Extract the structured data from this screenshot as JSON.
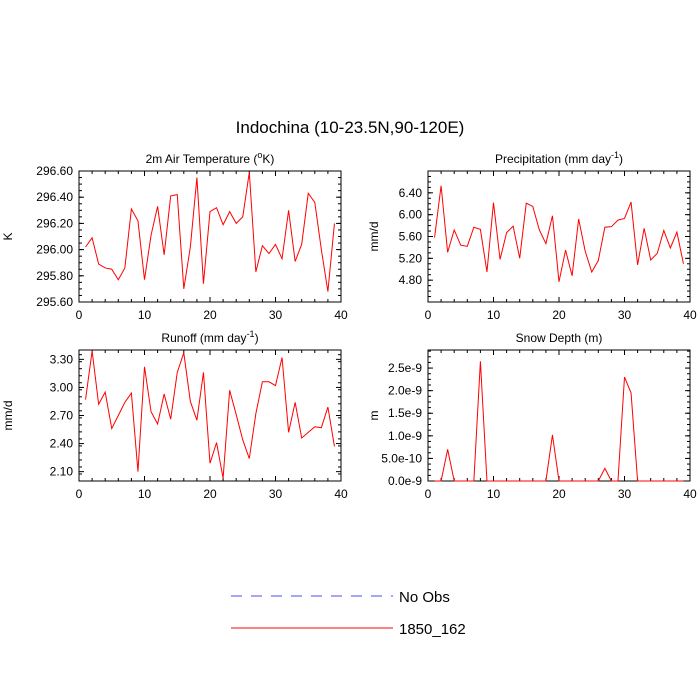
{
  "figure": {
    "title": "Indochina (10-23.5N,90-120E)",
    "legend": [
      {
        "label": "No Obs",
        "color": "#4a4aff",
        "style": "dashed"
      },
      {
        "label": "1850_162",
        "color": "#ff0000",
        "style": "solid"
      }
    ]
  },
  "chart_data": [
    {
      "type": "line",
      "title": "2m Air Temperature (",
      "title_sup": "o",
      "title_tail": "K)",
      "ylabel": "K",
      "xlim": [
        0,
        40
      ],
      "ylim": [
        295.6,
        296.6
      ],
      "xticks": [
        "0",
        "10",
        "20",
        "30",
        "40"
      ],
      "xtick_values": [
        0,
        10,
        20,
        30,
        40
      ],
      "yticks": [
        "295.60",
        "295.80",
        "296.00",
        "296.20",
        "296.40",
        "296.60"
      ],
      "ytick_values": [
        295.6,
        295.8,
        296.0,
        296.2,
        296.4,
        296.6
      ],
      "series": [
        {
          "name": "1850_162",
          "color": "#ff0000",
          "x": [
            1,
            2,
            3,
            4,
            5,
            6,
            7,
            8,
            9,
            10,
            11,
            12,
            13,
            14,
            15,
            16,
            17,
            18,
            19,
            20,
            21,
            22,
            23,
            24,
            25,
            26,
            27,
            28,
            29,
            30,
            31,
            32,
            33,
            34,
            35,
            36,
            37,
            38,
            39
          ],
          "y": [
            296.02,
            296.09,
            295.89,
            295.86,
            295.85,
            295.77,
            295.86,
            296.31,
            296.22,
            295.77,
            296.11,
            296.33,
            295.96,
            296.41,
            296.42,
            295.7,
            296.02,
            296.55,
            295.74,
            296.29,
            296.32,
            296.19,
            296.29,
            296.2,
            296.25,
            296.59,
            295.83,
            296.03,
            295.97,
            296.04,
            295.93,
            296.3,
            295.91,
            296.04,
            296.43,
            296.36,
            296.0,
            295.68,
            296.2
          ]
        }
      ]
    },
    {
      "type": "line",
      "title": "Precipitation (mm day",
      "title_sup": "-1",
      "title_tail": ")",
      "ylabel": "mm/d",
      "xlim": [
        0,
        40
      ],
      "ylim": [
        4.4,
        6.8
      ],
      "xticks": [
        "0",
        "10",
        "20",
        "30",
        "40"
      ],
      "xtick_values": [
        0,
        10,
        20,
        30,
        40
      ],
      "yticks": [
        "4.80",
        "5.20",
        "5.60",
        "6.00",
        "6.40"
      ],
      "ytick_values": [
        4.8,
        5.2,
        5.6,
        6.0,
        6.4
      ],
      "series": [
        {
          "name": "1850_162",
          "color": "#ff0000",
          "x": [
            1,
            2,
            3,
            4,
            5,
            6,
            7,
            8,
            9,
            10,
            11,
            12,
            13,
            14,
            15,
            16,
            17,
            18,
            19,
            20,
            21,
            22,
            23,
            24,
            25,
            26,
            27,
            28,
            29,
            30,
            31,
            32,
            33,
            34,
            35,
            36,
            37,
            38,
            39
          ],
          "y": [
            5.58,
            6.53,
            5.31,
            5.72,
            5.44,
            5.42,
            5.77,
            5.73,
            4.95,
            6.22,
            5.18,
            5.67,
            5.79,
            5.2,
            6.21,
            6.15,
            5.72,
            5.47,
            5.98,
            4.77,
            5.35,
            4.88,
            5.92,
            5.33,
            4.95,
            5.16,
            5.77,
            5.78,
            5.9,
            5.93,
            6.23,
            5.08,
            5.75,
            5.17,
            5.29,
            5.71,
            5.39,
            5.68,
            5.1
          ]
        }
      ]
    },
    {
      "type": "line",
      "title": "Runoff (mm day",
      "title_sup": "-1",
      "title_tail": ")",
      "ylabel": "mm/d",
      "xlim": [
        0,
        40
      ],
      "ylim": [
        2.0,
        3.4
      ],
      "xticks": [
        "0",
        "10",
        "20",
        "30",
        "40"
      ],
      "xtick_values": [
        0,
        10,
        20,
        30,
        40
      ],
      "yticks": [
        "2.10",
        "2.40",
        "2.70",
        "3.00",
        "3.30"
      ],
      "ytick_values": [
        2.1,
        2.4,
        2.7,
        3.0,
        3.3
      ],
      "series": [
        {
          "name": "1850_162",
          "color": "#ff0000",
          "x": [
            1,
            2,
            3,
            4,
            5,
            6,
            7,
            8,
            9,
            10,
            11,
            12,
            13,
            14,
            15,
            16,
            17,
            18,
            19,
            20,
            21,
            22,
            23,
            24,
            25,
            26,
            27,
            28,
            29,
            30,
            31,
            32,
            33,
            34,
            35,
            36,
            37,
            38,
            39
          ],
          "y": [
            2.87,
            3.39,
            2.82,
            2.95,
            2.56,
            2.7,
            2.84,
            2.94,
            2.1,
            3.22,
            2.74,
            2.61,
            2.93,
            2.66,
            3.16,
            3.37,
            2.85,
            2.65,
            3.16,
            2.19,
            2.41,
            2.03,
            2.97,
            2.71,
            2.44,
            2.24,
            2.72,
            3.06,
            3.06,
            3.02,
            3.32,
            2.52,
            2.84,
            2.46,
            2.52,
            2.58,
            2.57,
            2.79,
            2.37
          ]
        }
      ]
    },
    {
      "type": "line",
      "title": "Snow Depth (m)",
      "title_sup": "",
      "title_tail": "",
      "ylabel": "m",
      "xlim": [
        0,
        40
      ],
      "ylim": [
        0,
        2.9e-09
      ],
      "xticks": [
        "0",
        "10",
        "20",
        "30",
        "40"
      ],
      "xtick_values": [
        0,
        10,
        20,
        30,
        40
      ],
      "yticks": [
        "0.0e-9",
        "5.0e-10",
        "1.0e-9",
        "1.5e-9",
        "2.0e-9",
        "2.5e-9"
      ],
      "ytick_values": [
        0,
        5e-10,
        1e-09,
        1.5e-09,
        2e-09,
        2.5e-09
      ],
      "series": [
        {
          "name": "1850_162",
          "color": "#ff0000",
          "x": [
            1,
            2,
            3,
            4,
            5,
            6,
            7,
            8,
            9,
            10,
            11,
            12,
            13,
            14,
            15,
            16,
            17,
            18,
            19,
            20,
            21,
            22,
            23,
            24,
            25,
            26,
            27,
            28,
            29,
            30,
            31,
            32,
            33,
            34,
            35,
            36,
            37,
            38,
            39
          ],
          "y": [
            0,
            0,
            7e-10,
            0,
            0,
            0,
            0,
            2.65e-09,
            0,
            0,
            0,
            0,
            0,
            0,
            0,
            0,
            0,
            0,
            1.02e-09,
            0,
            0,
            0,
            0,
            0,
            0,
            0,
            2.8e-10,
            0,
            0,
            2.3e-09,
            1.95e-09,
            0,
            0,
            0,
            0,
            0,
            0,
            0,
            0
          ]
        }
      ]
    }
  ]
}
